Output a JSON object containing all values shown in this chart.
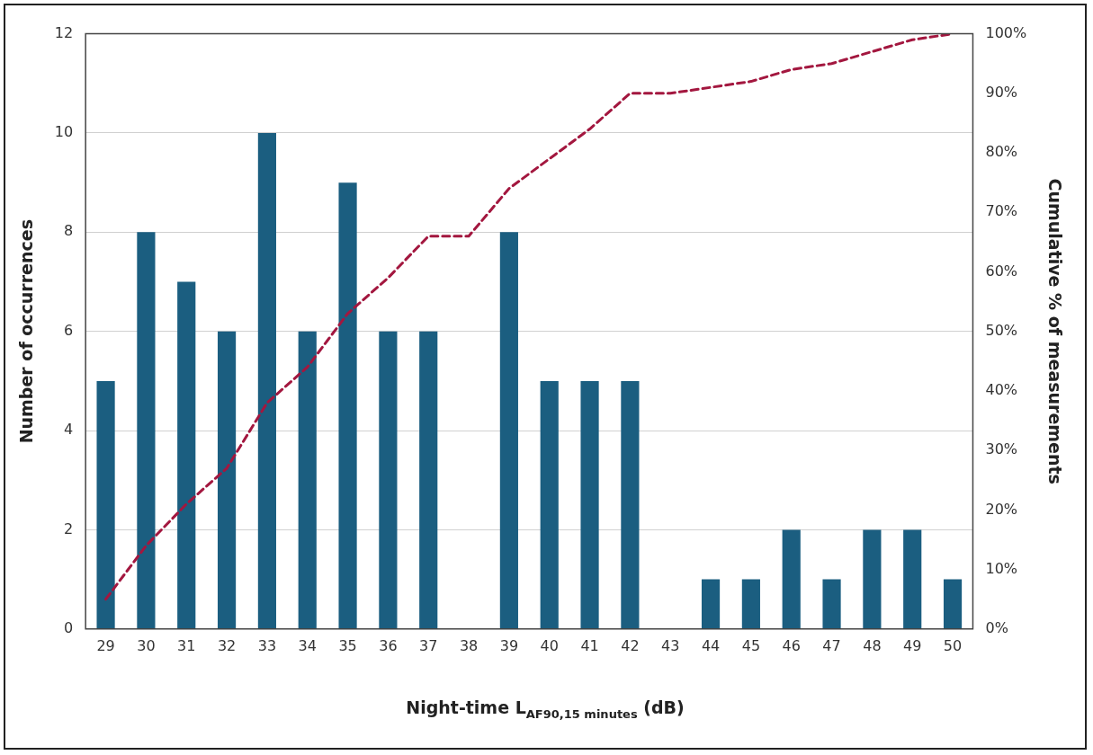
{
  "chart_data": {
    "type": "bar",
    "xlabel": "Night-time L$_{AF90,15 minutes}$ (dB)",
    "ylabel": "Number of occurrences",
    "y2label": "Cumulative % of measurements",
    "categories": [
      "29",
      "30",
      "31",
      "32",
      "33",
      "34",
      "35",
      "36",
      "37",
      "38",
      "39",
      "40",
      "41",
      "42",
      "43",
      "44",
      "45",
      "46",
      "47",
      "48",
      "49",
      "50"
    ],
    "series": [
      {
        "color": "#1b5e80",
        "values": [
          5,
          8,
          7,
          6,
          10,
          6,
          9,
          6,
          6,
          0,
          8,
          5,
          5,
          5,
          0,
          1,
          1,
          2,
          1,
          2,
          2,
          1
        ]
      },
      {
        "type": "line",
        "axis": "y2",
        "color": "#a3173f",
        "line_style": "dashed",
        "marker": "none",
        "values": [
          5,
          14,
          21,
          27,
          38,
          44,
          53,
          59,
          66,
          66,
          74,
          79,
          84,
          90,
          90,
          91,
          92,
          94,
          95,
          97,
          99,
          100
        ]
      }
    ],
    "ylim": [
      0,
      12
    ],
    "yticks": [
      0,
      2,
      4,
      6,
      8,
      10,
      12
    ],
    "y2lim": [
      0,
      100
    ],
    "y2ticks": [
      {
        "value": 0,
        "label": "0%"
      },
      {
        "value": 10,
        "label": "10%"
      },
      {
        "value": 20,
        "label": "20%"
      },
      {
        "value": 30,
        "label": "30%"
      },
      {
        "value": 40,
        "label": "40%"
      },
      {
        "value": 50,
        "label": "50%"
      },
      {
        "value": 60,
        "label": "60%"
      },
      {
        "value": 70,
        "label": "70%"
      },
      {
        "value": 80,
        "label": "80%"
      },
      {
        "value": 90,
        "label": "90%"
      },
      {
        "value": 100,
        "label": "100%"
      }
    ],
    "grid": "y"
  }
}
